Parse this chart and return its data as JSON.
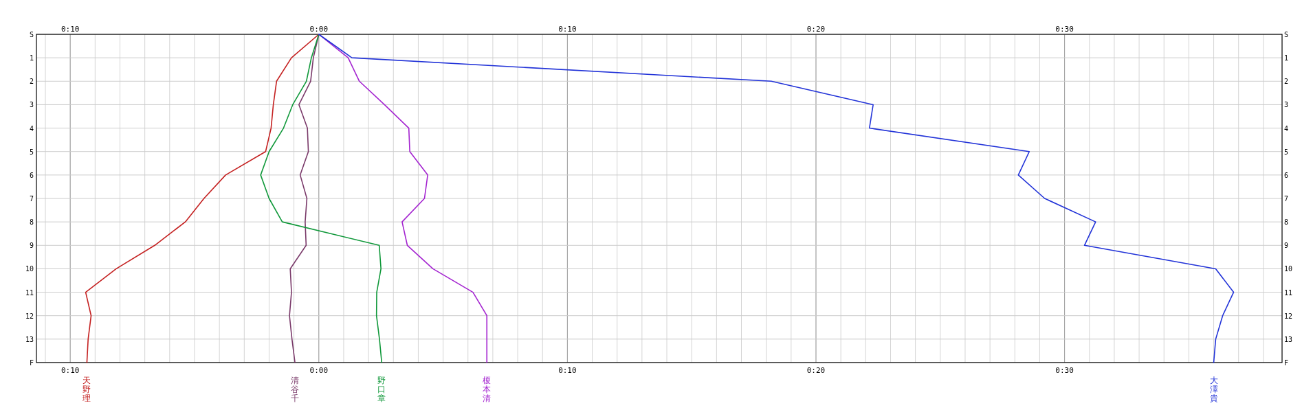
{
  "chart_data": {
    "type": "line",
    "orientation": "horizontal",
    "grid": true,
    "marker": "none",
    "line_style": "solid",
    "categories": [
      "S",
      "1",
      "2",
      "3",
      "4",
      "5",
      "6",
      "7",
      "8",
      "9",
      "10",
      "11",
      "12",
      "13",
      "F"
    ],
    "xlim": [
      -11.36,
      38.75
    ],
    "xticks": [
      {
        "value": -10,
        "label": "0:10"
      },
      {
        "value": 0,
        "label": "0:00"
      },
      {
        "value": 10,
        "label": "0:10"
      },
      {
        "value": 20,
        "label": "0:20"
      },
      {
        "value": 30,
        "label": "0:30"
      }
    ],
    "x2lim": [
      -11.36,
      38.75
    ],
    "x2ticks": [
      {
        "value": -10,
        "label": "0:10"
      },
      {
        "value": 0,
        "label": "0:00"
      },
      {
        "value": 10,
        "label": "0:10"
      },
      {
        "value": 20,
        "label": "0:20"
      },
      {
        "value": 30,
        "label": "0:30"
      }
    ],
    "series": [
      {
        "name": "天野理",
        "color": "#c42020",
        "values": [
          0,
          -1.1,
          -1.7,
          -1.83,
          -1.92,
          -2.14,
          -3.75,
          -4.62,
          -5.37,
          -6.6,
          -8.15,
          -9.38,
          -9.16,
          -9.28,
          -9.33
        ]
      },
      {
        "name": "清谷千",
        "color": "#7a3a6a",
        "values": [
          0,
          -0.22,
          -0.33,
          -0.8,
          -0.46,
          -0.42,
          -0.75,
          -0.48,
          -0.55,
          -0.51,
          -1.15,
          -1.1,
          -1.18,
          -1.08,
          -0.96
        ]
      },
      {
        "name": "野口章",
        "color": "#10983a",
        "values": [
          0,
          -0.3,
          -0.5,
          -1.05,
          -1.42,
          -2.0,
          -2.34,
          -2.0,
          -1.47,
          2.43,
          2.5,
          2.33,
          2.32,
          2.44,
          2.53
        ]
      },
      {
        "name": "榎本清",
        "color": "#a424d0",
        "values": [
          0,
          1.18,
          1.63,
          2.64,
          3.62,
          3.66,
          4.38,
          4.25,
          3.35,
          3.56,
          4.59,
          6.2,
          6.76,
          6.76,
          6.76
        ]
      },
      {
        "name": "大澤貴",
        "color": "#2233d8",
        "values": [
          0,
          1.33,
          18.2,
          22.3,
          22.15,
          28.58,
          28.14,
          29.2,
          31.25,
          30.8,
          36.08,
          36.8,
          36.36,
          36.08,
          36.0
        ]
      }
    ]
  }
}
